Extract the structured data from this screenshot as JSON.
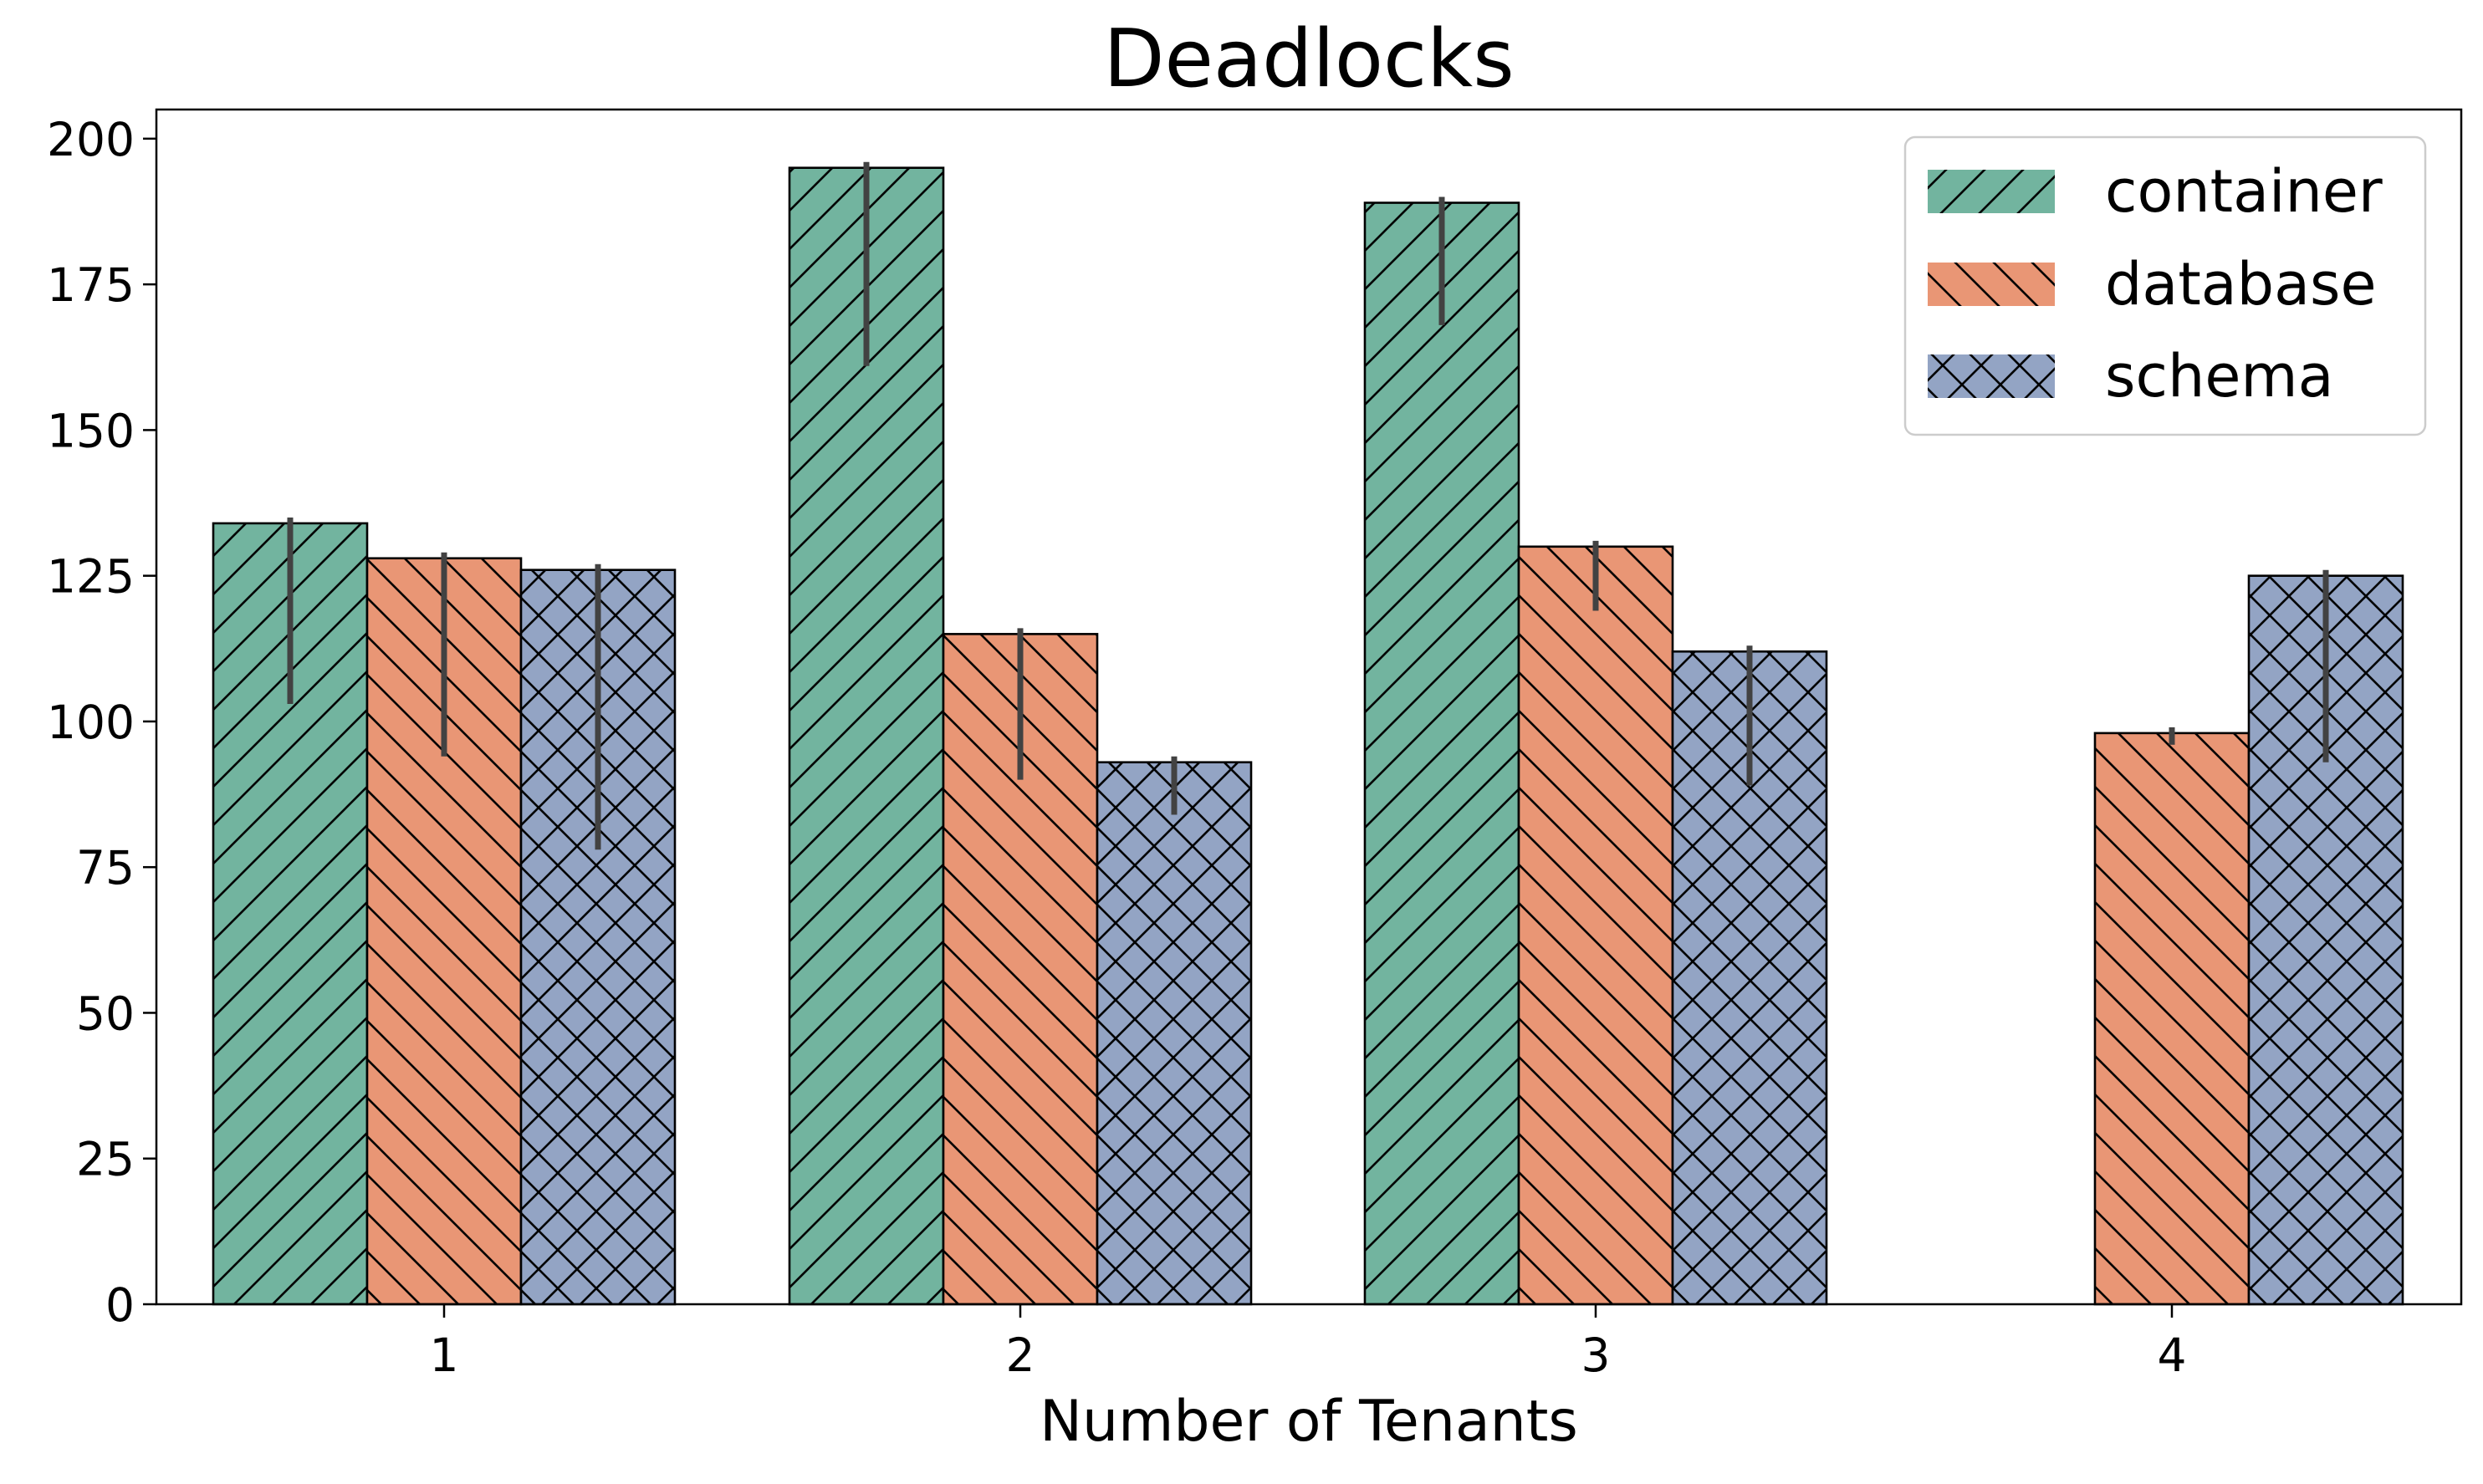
{
  "chart_data": {
    "type": "bar",
    "title": "Deadlocks",
    "xlabel": "Number of Tenants",
    "ylabel": "",
    "categories": [
      "1",
      "2",
      "3",
      "4"
    ],
    "ylim": [
      0,
      205
    ],
    "yticks": [
      0,
      25,
      50,
      75,
      100,
      125,
      150,
      175,
      200
    ],
    "ytick_labels": [
      "0",
      "25",
      "50",
      "75",
      "100",
      "125",
      "150",
      "175",
      "200"
    ],
    "legend_position": "top-right",
    "grid": false,
    "series": [
      {
        "name": "container",
        "color": "#72b49f",
        "hatch": "forward-diagonal",
        "values": [
          134,
          195,
          189,
          null
        ],
        "error_low": [
          103,
          161,
          168,
          null
        ],
        "error_high": [
          135,
          196,
          190,
          null
        ]
      },
      {
        "name": "database",
        "color": "#e99675",
        "hatch": "back-diagonal",
        "values": [
          128,
          115,
          130,
          98
        ],
        "error_low": [
          94,
          90,
          119,
          96
        ],
        "error_high": [
          129,
          116,
          131,
          99
        ]
      },
      {
        "name": "schema",
        "color": "#93a4c4",
        "hatch": "cross",
        "values": [
          126,
          93,
          112,
          125
        ],
        "error_low": [
          78,
          84,
          89,
          93
        ],
        "error_high": [
          127,
          94,
          113,
          126
        ]
      }
    ],
    "errorbar_color": "#424242"
  }
}
